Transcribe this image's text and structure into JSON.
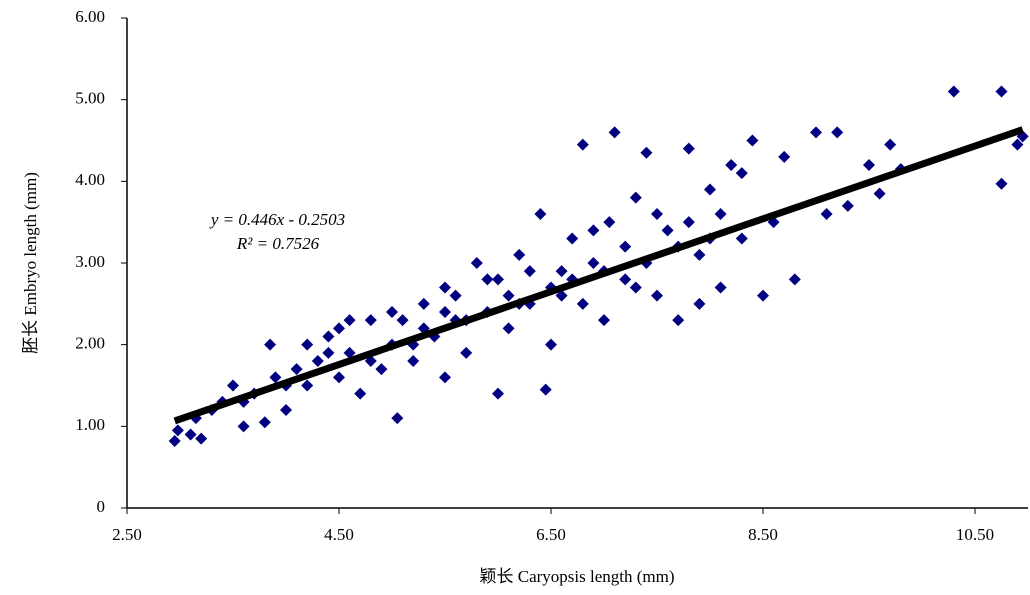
{
  "chart_data": {
    "type": "scatter",
    "xlabel": "颖长 Caryopsis length (mm)",
    "ylabel": "胚长 Embryo length (mm)",
    "annotations": [
      "y = 0.446x - 0.2503",
      "R² = 0.7526"
    ],
    "trendline": {
      "slope": 0.446,
      "intercept": -0.2503,
      "x": [
        2.95,
        10.95
      ],
      "color": "#000000"
    },
    "series": [
      {
        "color": "#000080",
        "x": [
          2.95,
          2.98,
          3.1,
          3.2,
          3.15,
          3.3,
          3.4,
          3.5,
          3.6,
          3.7,
          3.8,
          3.9,
          3.85,
          4.0,
          4.1,
          4.2,
          4.3,
          4.4,
          4.5,
          4.5,
          4.6,
          4.7,
          4.8,
          4.9,
          5.0,
          5.05,
          5.1,
          5.2,
          5.3,
          5.4,
          5.5,
          5.5,
          5.6,
          5.7,
          5.8,
          5.9,
          6.0,
          6.0,
          6.1,
          6.2,
          6.3,
          6.4,
          6.45,
          6.5,
          6.6,
          6.7,
          6.8,
          6.8,
          6.9,
          7.0,
          7.05,
          7.1,
          7.2,
          7.3,
          7.4,
          7.5,
          7.6,
          7.7,
          7.8,
          7.9,
          8.0,
          8.1,
          8.2,
          8.3,
          8.4,
          8.5,
          8.6,
          8.7,
          8.8,
          9.0,
          9.1,
          9.2,
          9.3,
          9.5,
          9.6,
          9.7,
          9.8,
          10.3,
          10.75,
          10.75,
          10.9,
          10.95,
          4.2,
          4.6,
          5.0,
          5.3,
          5.6,
          5.9,
          6.1,
          6.3,
          6.6,
          6.9,
          7.2,
          7.5,
          7.8,
          8.1,
          8.3,
          3.6,
          4.0,
          4.8,
          5.2,
          5.7,
          6.2,
          6.7,
          7.0,
          7.4,
          7.7,
          8.0,
          4.4,
          5.5,
          6.5,
          7.3,
          7.9
        ],
        "values": [
          0.82,
          0.95,
          0.9,
          0.85,
          1.1,
          1.2,
          1.3,
          1.5,
          1.0,
          1.4,
          1.05,
          1.6,
          2.0,
          1.2,
          1.7,
          1.5,
          1.8,
          2.1,
          1.6,
          2.2,
          1.9,
          1.4,
          2.3,
          1.7,
          2.0,
          1.1,
          2.3,
          1.8,
          2.5,
          2.1,
          1.6,
          2.7,
          2.3,
          1.9,
          3.0,
          2.4,
          1.4,
          2.8,
          2.2,
          3.1,
          2.5,
          3.6,
          1.45,
          2.0,
          2.9,
          3.3,
          4.45,
          2.5,
          3.0,
          2.3,
          3.5,
          4.6,
          2.8,
          3.8,
          4.35,
          2.6,
          3.4,
          2.3,
          4.4,
          3.1,
          3.9,
          2.7,
          4.2,
          3.3,
          4.5,
          2.6,
          3.5,
          4.3,
          2.8,
          4.6,
          3.6,
          4.6,
          3.7,
          4.2,
          3.85,
          4.45,
          4.15,
          5.1,
          5.1,
          3.97,
          4.45,
          4.55,
          2.0,
          2.3,
          2.4,
          2.2,
          2.6,
          2.8,
          2.6,
          2.9,
          2.6,
          3.4,
          3.2,
          3.6,
          3.5,
          3.6,
          4.1,
          1.3,
          1.5,
          1.8,
          2.0,
          2.3,
          2.5,
          2.8,
          2.9,
          3.0,
          3.2,
          3.3,
          1.9,
          2.4,
          2.7,
          2.7,
          2.5
        ]
      }
    ],
    "xlim": [
      2.5,
      11.0
    ],
    "xticks": [
      {
        "value": 2.5,
        "label": "2.50"
      },
      {
        "value": 4.5,
        "label": "4.50"
      },
      {
        "value": 6.5,
        "label": "6.50"
      },
      {
        "value": 8.5,
        "label": "8.50"
      },
      {
        "value": 10.5,
        "label": "10.50"
      }
    ],
    "ylim": [
      0,
      6
    ],
    "yticks": [
      0,
      {
        "value": 1,
        "label": "1.00"
      },
      {
        "value": 2,
        "label": "2.00"
      },
      {
        "value": 3,
        "label": "3.00"
      },
      {
        "value": 4,
        "label": "4.00"
      },
      {
        "value": 5,
        "label": "5.00"
      },
      {
        "value": 6,
        "label": "6.00"
      }
    ]
  }
}
